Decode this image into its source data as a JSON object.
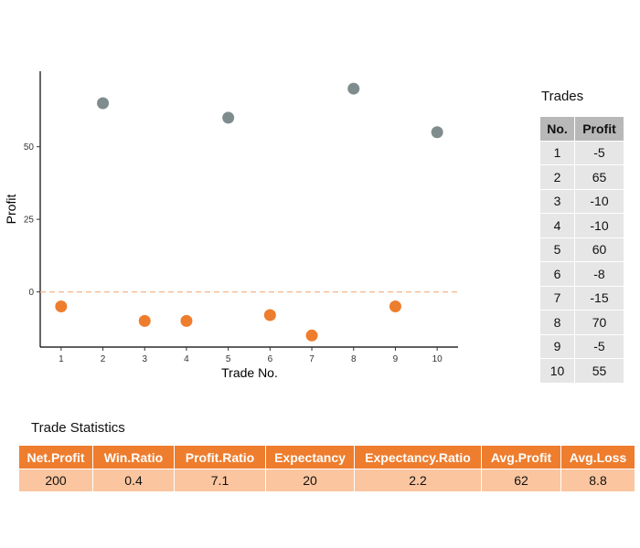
{
  "chart_data": {
    "type": "scatter",
    "x": [
      1,
      2,
      3,
      4,
      5,
      6,
      7,
      8,
      9,
      10
    ],
    "y": [
      -5,
      65,
      -10,
      -10,
      60,
      -8,
      -15,
      70,
      -5,
      55
    ],
    "xlabel": "Trade No.",
    "ylabel": "Profit",
    "xticks": [
      "1",
      "2",
      "3",
      "4",
      "5",
      "6",
      "7",
      "8",
      "9",
      "10"
    ],
    "yticks": [
      "0",
      "25",
      "50"
    ],
    "xlim": [
      0.5,
      10.5
    ],
    "ylim": [
      -19,
      76
    ],
    "reference_line": {
      "y": 0,
      "style": "dashed",
      "color": "#f5b58a"
    },
    "colors": {
      "profit": "#7f8c8d",
      "loss": "#ee7d2e"
    },
    "grid": false
  },
  "trades": {
    "title": "Trades",
    "columns": [
      "No.",
      "Profit"
    ],
    "rows": [
      [
        "1",
        "-5"
      ],
      [
        "2",
        "65"
      ],
      [
        "3",
        "-10"
      ],
      [
        "4",
        "-10"
      ],
      [
        "5",
        "60"
      ],
      [
        "6",
        "-8"
      ],
      [
        "7",
        "-15"
      ],
      [
        "8",
        "70"
      ],
      [
        "9",
        "-5"
      ],
      [
        "10",
        "55"
      ]
    ]
  },
  "stats": {
    "title": "Trade Statistics",
    "columns": [
      "Net.Profit",
      "Win.Ratio",
      "Profit.Ratio",
      "Expectancy",
      "Expectancy.Ratio",
      "Avg.Profit",
      "Avg.Loss"
    ],
    "values": [
      "200",
      "0.4",
      "7.1",
      "20",
      "2.2",
      "62",
      "8.8"
    ]
  }
}
